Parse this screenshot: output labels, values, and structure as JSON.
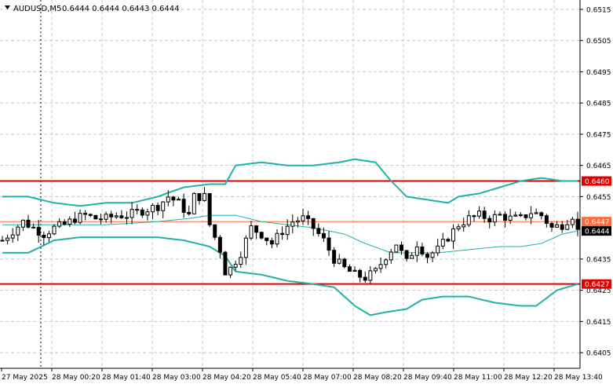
{
  "header": {
    "symbol_label": "AUDUSD,M5",
    "ohlc": "0.6444 0.6444 0.6443 0.6444"
  },
  "colors": {
    "background": "#ffffff",
    "grid": "#c8c8c8",
    "candle": "#000000",
    "bollinger": "#20b2aa",
    "level_line": "#e00000",
    "tag_price": "#ff6a3a",
    "tag_level": "#e00000",
    "tag_current": "#000000"
  },
  "chart_data": {
    "type": "candlestick",
    "symbol": "AUDUSD",
    "timeframe": "M5",
    "ylim": [
      0.64,
      0.6518
    ],
    "y_ticks": [
      "0.6515",
      "0.6505",
      "0.6495",
      "0.6485",
      "0.6475",
      "0.6465",
      "0.6455",
      "0.6435",
      "0.6425",
      "0.6415",
      "0.6405"
    ],
    "x_ticks": [
      "27 May 2025",
      "28 May 00:20",
      "28 May 01:40",
      "28 May 03:00",
      "28 May 04:20",
      "28 May 05:40",
      "28 May 07:00",
      "28 May 08:20",
      "28 May 09:40",
      "28 May 11:00",
      "28 May 12:20",
      "28 May 13:40"
    ],
    "grid": true,
    "period_separator_after_tick": 0,
    "levels": [
      {
        "label": "0.6460",
        "value": 0.646,
        "style": "level"
      },
      {
        "label": "0.6447",
        "value": 0.6447,
        "style": "price"
      },
      {
        "label": "0.6427",
        "value": 0.6427,
        "style": "level"
      },
      {
        "label": "0.6444",
        "value": 0.6444,
        "style": "current"
      }
    ],
    "close_path": [
      [
        0,
        0.6441
      ],
      [
        2,
        0.6444
      ],
      [
        4,
        0.6447
      ],
      [
        6,
        0.6445
      ],
      [
        8,
        0.6443
      ],
      [
        10,
        0.6445
      ],
      [
        12,
        0.6446
      ],
      [
        14,
        0.6448
      ],
      [
        16,
        0.6449
      ],
      [
        18,
        0.6448
      ],
      [
        20,
        0.6448
      ],
      [
        22,
        0.6449
      ],
      [
        24,
        0.6449
      ],
      [
        26,
        0.645
      ],
      [
        28,
        0.6451
      ],
      [
        30,
        0.6452
      ],
      [
        32,
        0.6455
      ],
      [
        34,
        0.6453
      ],
      [
        36,
        0.6449
      ],
      [
        37,
        0.6455
      ],
      [
        39,
        0.6455
      ],
      [
        40,
        0.6446
      ],
      [
        42,
        0.6438
      ],
      [
        43,
        0.6431
      ],
      [
        44,
        0.6432
      ],
      [
        46,
        0.6437
      ],
      [
        48,
        0.6445
      ],
      [
        50,
        0.6443
      ],
      [
        52,
        0.644
      ],
      [
        54,
        0.6444
      ],
      [
        56,
        0.6447
      ],
      [
        58,
        0.6448
      ],
      [
        60,
        0.6445
      ],
      [
        62,
        0.6441
      ],
      [
        64,
        0.6435
      ],
      [
        66,
        0.6432
      ],
      [
        68,
        0.643
      ],
      [
        70,
        0.6429
      ],
      [
        72,
        0.6431
      ],
      [
        74,
        0.6436
      ],
      [
        76,
        0.644
      ],
      [
        78,
        0.6434
      ],
      [
        80,
        0.644
      ],
      [
        82,
        0.6436
      ],
      [
        84,
        0.6438
      ],
      [
        86,
        0.6442
      ],
      [
        88,
        0.6446
      ],
      [
        90,
        0.6448
      ],
      [
        92,
        0.6449
      ],
      [
        94,
        0.6448
      ],
      [
        96,
        0.6449
      ],
      [
        98,
        0.6448
      ],
      [
        100,
        0.6448
      ],
      [
        102,
        0.645
      ],
      [
        104,
        0.6449
      ],
      [
        106,
        0.6445
      ],
      [
        108,
        0.6446
      ],
      [
        110,
        0.6449
      ],
      [
        111,
        0.6444
      ]
    ],
    "bollinger": {
      "period_count": 112,
      "upper": [
        [
          0,
          0.6455
        ],
        [
          5,
          0.6455
        ],
        [
          10,
          0.6453
        ],
        [
          15,
          0.6452
        ],
        [
          20,
          0.6453
        ],
        [
          25,
          0.6453
        ],
        [
          30,
          0.6455
        ],
        [
          35,
          0.6458
        ],
        [
          40,
          0.6459
        ],
        [
          43,
          0.6459
        ],
        [
          45,
          0.6465
        ],
        [
          50,
          0.6466
        ],
        [
          55,
          0.6465
        ],
        [
          60,
          0.6465
        ],
        [
          65,
          0.6466
        ],
        [
          68,
          0.6467
        ],
        [
          72,
          0.6466
        ],
        [
          75,
          0.646
        ],
        [
          78,
          0.6455
        ],
        [
          82,
          0.6454
        ],
        [
          86,
          0.6453
        ],
        [
          88,
          0.6455
        ],
        [
          92,
          0.6456
        ],
        [
          96,
          0.6458
        ],
        [
          100,
          0.646
        ],
        [
          104,
          0.6461
        ],
        [
          108,
          0.646
        ],
        [
          111,
          0.646
        ]
      ],
      "middle": [
        [
          0,
          0.6446
        ],
        [
          10,
          0.6446
        ],
        [
          20,
          0.6446
        ],
        [
          30,
          0.6447
        ],
        [
          36,
          0.6448
        ],
        [
          40,
          0.6449
        ],
        [
          45,
          0.6449
        ],
        [
          50,
          0.6447
        ],
        [
          55,
          0.6446
        ],
        [
          60,
          0.6445
        ],
        [
          66,
          0.6443
        ],
        [
          70,
          0.644
        ],
        [
          75,
          0.6437
        ],
        [
          78,
          0.6437
        ],
        [
          84,
          0.6437
        ],
        [
          90,
          0.6438
        ],
        [
          96,
          0.6439
        ],
        [
          100,
          0.6439
        ],
        [
          104,
          0.644
        ],
        [
          108,
          0.6443
        ],
        [
          111,
          0.6444
        ]
      ],
      "lower": [
        [
          0,
          0.6437
        ],
        [
          5,
          0.6437
        ],
        [
          10,
          0.6441
        ],
        [
          15,
          0.6442
        ],
        [
          20,
          0.6442
        ],
        [
          25,
          0.6442
        ],
        [
          30,
          0.6442
        ],
        [
          35,
          0.6441
        ],
        [
          40,
          0.6439
        ],
        [
          43,
          0.6436
        ],
        [
          45,
          0.6431
        ],
        [
          50,
          0.643
        ],
        [
          55,
          0.6428
        ],
        [
          60,
          0.6427
        ],
        [
          64,
          0.6426
        ],
        [
          68,
          0.642
        ],
        [
          71,
          0.6417
        ],
        [
          74,
          0.6418
        ],
        [
          78,
          0.6419
        ],
        [
          81,
          0.6422
        ],
        [
          85,
          0.6423
        ],
        [
          90,
          0.6423
        ],
        [
          95,
          0.6421
        ],
        [
          100,
          0.642
        ],
        [
          103,
          0.642
        ],
        [
          107,
          0.6425
        ],
        [
          111,
          0.6427
        ]
      ]
    }
  }
}
